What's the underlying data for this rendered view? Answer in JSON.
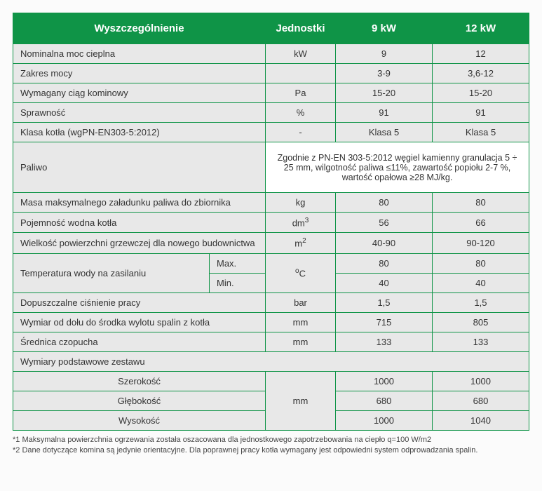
{
  "table": {
    "border_color": "#0f9447",
    "header_bg": "#0f9447",
    "header_text_color": "#ffffff",
    "row_bg": "#e8e8e8",
    "fuel_cell_bg": "#ffffff",
    "headers": {
      "spec": "Wyszczególnienie",
      "unit": "Jednostki",
      "col_a": "9 kW",
      "col_b": "12 kW"
    },
    "rows": {
      "nominal_power": {
        "label": "Nominalna moc cieplna",
        "unit": "kW",
        "a": "9",
        "b": "12"
      },
      "power_range": {
        "label": "Zakres mocy",
        "unit": "",
        "a": "3-9",
        "b": "3,6-12"
      },
      "chimney_draft": {
        "label": "Wymagany ciąg kominowy",
        "unit": "Pa",
        "a": "15-20",
        "b": "15-20"
      },
      "efficiency": {
        "label": "Sprawność",
        "unit": "%",
        "a": "91",
        "b": "91"
      },
      "boiler_class": {
        "label": "Klasa kotła (wgPN-EN303-5:2012)",
        "unit": "-",
        "a": "Klasa 5",
        "b": "Klasa 5"
      },
      "fuel": {
        "label": "Paliwo",
        "text": "Zgodnie z PN-EN 303-5:2012 węgiel kamienny granulacja 5 ÷ 25 mm, wilgotność paliwa ≤11%, zawartość popiołu 2-7 %, wartość opałowa ≥28 MJ/kg."
      },
      "max_fuel_load": {
        "label": "Masa maksymalnego załadunku paliwa do zbiornika",
        "unit": "kg",
        "a": "80",
        "b": "80"
      },
      "water_capacity": {
        "label": "Pojemność wodna kotła",
        "unit_html": "dm<sup>3</sup>",
        "a": "56",
        "b": "66"
      },
      "heating_area": {
        "label": "Wielkość powierzchni grzewczej dla nowego budownictwa",
        "unit_html": "m<sup>2</sup>",
        "a": "40-90",
        "b": "90-120"
      },
      "water_temp": {
        "label": "Temperatura wody na zasilaniu",
        "max_label": "Max.",
        "min_label": "Min.",
        "unit_html": "<sup>o</sup>C",
        "max_a": "80",
        "max_b": "80",
        "min_a": "40",
        "min_b": "40"
      },
      "work_pressure": {
        "label": "Dopuszczalne ciśnienie pracy",
        "unit": "bar",
        "a": "1,5",
        "b": "1,5"
      },
      "flue_height": {
        "label": "Wymiar od dołu do środka wylotu spalin z kotła",
        "unit": "mm",
        "a": "715",
        "b": "805"
      },
      "flue_diameter": {
        "label": "Średnica czopucha",
        "unit": "mm",
        "a": "133",
        "b": "133"
      },
      "dimensions": {
        "section_label": "Wymiary podstawowe zestawu",
        "unit": "mm",
        "width": {
          "label": "Szerokość",
          "a": "1000",
          "b": "1000"
        },
        "depth": {
          "label": "Głębokość",
          "a": "680",
          "b": "680"
        },
        "height": {
          "label": "Wysokość",
          "a": "1000",
          "b": "1040"
        }
      }
    }
  },
  "footnotes": {
    "n1": "*1 Maksymalna powierzchnia ogrzewania została oszacowana dla jednostkowego zapotrzebowania na ciepło q=100 W/m2",
    "n2": "*2 Dane dotyczące komina są jedynie orientacyjne. Dla poprawnej pracy kotła wymagany jest odpowiedni system odprowadzania spalin."
  }
}
